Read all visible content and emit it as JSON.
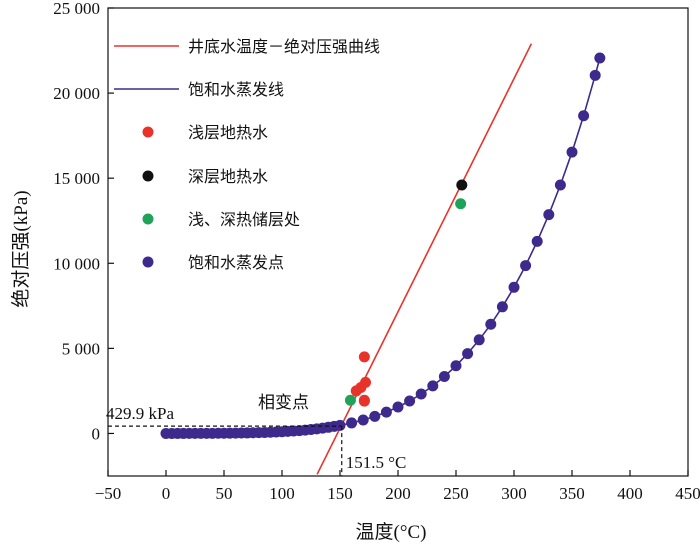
{
  "chart_data": {
    "type": "scatter",
    "title": "",
    "xlabel": "温度(°C)",
    "ylabel": "绝对压强(kPa)",
    "xlim": [
      -50,
      450
    ],
    "ylim": [
      -2500,
      25000
    ],
    "x_ticks": [
      -50,
      0,
      50,
      100,
      150,
      200,
      250,
      300,
      350,
      400,
      450
    ],
    "x_tick_labels": [
      "−50",
      "0",
      "50",
      "100",
      "150",
      "200",
      "250",
      "300",
      "350",
      "400",
      "450"
    ],
    "y_ticks": [
      0,
      5000,
      10000,
      15000,
      20000,
      25000
    ],
    "y_tick_labels": [
      "0",
      "5 000",
      "10 000",
      "15 000",
      "20 000",
      "25 000"
    ],
    "grid": false,
    "legend_position": "top-left",
    "series": [
      {
        "name": "井底水温度－绝对压强曲线",
        "kind": "line",
        "color": "#e8332a",
        "x": [
          130.3,
          315
        ],
        "y": [
          -2400,
          22900
        ]
      },
      {
        "name": "饱和水蒸发线",
        "kind": "line",
        "color": "#3d2a8c",
        "x": [
          0,
          10,
          20,
          30,
          40,
          50,
          60,
          70,
          80,
          90,
          100,
          110,
          120,
          130,
          140,
          150,
          160,
          170,
          180,
          190,
          200,
          210,
          220,
          230,
          240,
          250,
          260,
          270,
          280,
          290,
          300,
          310,
          320,
          330,
          340,
          350,
          360,
          370,
          374
        ],
        "y": [
          0.6,
          1.2,
          2.3,
          4.2,
          7.4,
          12.3,
          19.9,
          31.2,
          47.4,
          70.1,
          101.3,
          143.3,
          198.5,
          270.1,
          361.4,
          476.0,
          618.1,
          792.0,
          1002.2,
          1254.4,
          1554.9,
          1907.7,
          2319.6,
          2797.1,
          3346.9,
          3976.2,
          4692.3,
          5503.0,
          6416.6,
          7441.8,
          8587.9,
          9865.1,
          11284,
          12858,
          14601,
          16529,
          18666,
          21044,
          22064
        ]
      },
      {
        "name": "浅层地热水",
        "kind": "points",
        "color": "#e8332a",
        "x": [
          164,
          168,
          172,
          171,
          171,
          171
        ],
        "y": [
          2500,
          2700,
          3000,
          4500,
          1900,
          1950
        ]
      },
      {
        "name": "深层地热水",
        "kind": "points",
        "color": "#111111",
        "x": [
          255
        ],
        "y": [
          14600
        ]
      },
      {
        "name": "浅、深热储层处",
        "kind": "points",
        "color": "#1fa35a",
        "x": [
          159,
          254
        ],
        "y": [
          1950,
          13500
        ]
      },
      {
        "name": "饱和水蒸发点",
        "kind": "points",
        "color": "#3d2a8c",
        "x": [
          0,
          5,
          10,
          15,
          20,
          25,
          30,
          35,
          40,
          45,
          50,
          55,
          60,
          65,
          70,
          75,
          80,
          85,
          90,
          95,
          100,
          105,
          110,
          115,
          120,
          125,
          130,
          135,
          140,
          145,
          150,
          160,
          170,
          180,
          190,
          200,
          210,
          220,
          230,
          240,
          250,
          260,
          270,
          280,
          290,
          300,
          310,
          320,
          330,
          340,
          350,
          360,
          370,
          374
        ],
        "y": [
          0.6,
          0.9,
          1.2,
          1.7,
          2.3,
          3.2,
          4.2,
          5.6,
          7.4,
          9.6,
          12.3,
          15.8,
          19.9,
          25.0,
          31.2,
          38.6,
          47.4,
          57.9,
          70.1,
          84.6,
          101.3,
          120.9,
          143.3,
          169.2,
          198.5,
          232.2,
          270.1,
          313.0,
          361.4,
          415.7,
          476.0,
          618.1,
          792.0,
          1002.2,
          1254.4,
          1554.9,
          1907.7,
          2319.6,
          2797.1,
          3346.9,
          3976.2,
          4692.3,
          5503.0,
          6416.6,
          7441.8,
          8587.9,
          9865.1,
          11284,
          12858,
          14601,
          16529,
          18666,
          21044,
          22064
        ]
      }
    ],
    "annotations": {
      "phase_point_label": "相变点",
      "pressure_label": "429.9 kPa",
      "temperature_label": "151.5 °C",
      "phase_point": {
        "x": 151.5,
        "y": 429.9
      }
    }
  }
}
